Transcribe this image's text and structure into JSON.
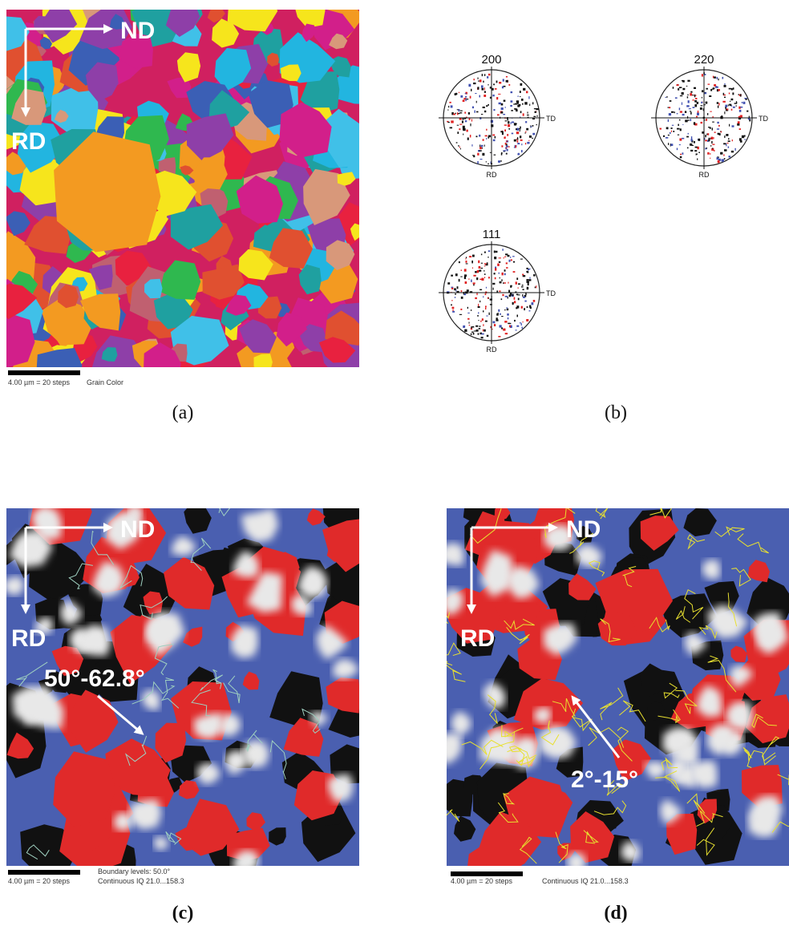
{
  "panels": [
    {
      "label": "(a)",
      "direction_x": "ND",
      "direction_y": "RD",
      "scale_text": "4.00 µm = 20 steps",
      "map_text": "Grain Color"
    },
    {
      "label": "(b)",
      "pole_figures": [
        {
          "title": "200",
          "side_label": "TD",
          "bottom_label": "RD"
        },
        {
          "title": "220",
          "side_label": "TD",
          "bottom_label": "RD"
        },
        {
          "title": "111",
          "side_label": "TD",
          "bottom_label": "RD"
        }
      ]
    },
    {
      "label": "(c)",
      "direction_x": "ND",
      "direction_y": "RD",
      "annotation": "50°-62.8°",
      "scale_text": "4.00 µm = 20 steps",
      "boundary_text": "Boundary levels: 50.0°",
      "map_text": "Continuous IQ 21.0...158.3"
    },
    {
      "label": "(d)",
      "direction_x": "ND",
      "direction_y": "RD",
      "annotation": "2°-15°",
      "scale_text": "4.00 µm = 20 steps",
      "map_text": "Continuous IQ 21.0...158.3"
    }
  ]
}
